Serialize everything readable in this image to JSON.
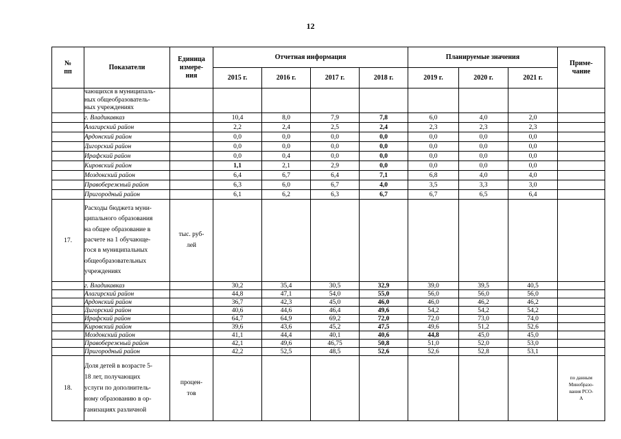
{
  "page_number": "12",
  "table": {
    "header": {
      "num": "№\nпп",
      "indicators": "Показатели",
      "unit": "Единица\nизмере-\nния",
      "report_group": "Отчетная информация",
      "plan_group": "Планируемые значения",
      "note": "Приме-\nчание",
      "years": [
        "2015 г.",
        "2016 г.",
        "2017 г.",
        "2018 г.",
        "2019 г.",
        "2020 г.",
        "2021 г."
      ]
    },
    "sections": [
      {
        "num": "",
        "title": "чающихся в муниципаль-\nных общеобразователь-\nных учреждениях",
        "unit": "",
        "note": "",
        "rows": [
          {
            "name": "г. Владикавказ",
            "values": [
              "10,4",
              "8,0",
              "7,9",
              "7,8",
              "6,0",
              "4,0",
              "2,0"
            ],
            "bold": [
              3
            ]
          },
          {
            "name": "Алагирский район",
            "values": [
              "2,2",
              "2,4",
              "2,5",
              "2,4",
              "2,3",
              "2,3",
              "2,3"
            ],
            "bold": [
              3
            ]
          },
          {
            "name": "Ардонский район",
            "values": [
              "0,0",
              "0,0",
              "0,0",
              "0,0",
              "0,0",
              "0,0",
              "0,0"
            ],
            "bold": [
              3
            ]
          },
          {
            "name": "Дигорский район",
            "values": [
              "0,0",
              "0,0",
              "0,0",
              "0,0",
              "0,0",
              "0,0",
              "0,0"
            ],
            "bold": [
              3
            ]
          },
          {
            "name": "Ирафский район",
            "values": [
              "0,0",
              "0,4",
              "0,0",
              "0,0",
              "0,0",
              "0,0",
              "0,0"
            ],
            "bold": [
              3
            ]
          },
          {
            "name": "Кировский район",
            "values": [
              "1,1",
              "2,1",
              "2,9",
              "0,0",
              "0,0",
              "0,0",
              "0,0"
            ],
            "bold": [
              0,
              3
            ]
          },
          {
            "name": "Моздокский район",
            "values": [
              "6,4",
              "6,7",
              "6,4",
              "7,1",
              "6,8",
              "4,0",
              "4,0"
            ],
            "bold": [
              3
            ]
          },
          {
            "name": "Правобережный район",
            "values": [
              "6,3",
              "6,0",
              "6,7",
              "4,0",
              "3,5",
              "3,3",
              "3,0"
            ],
            "bold": [
              3
            ]
          },
          {
            "name": "Пригородный район",
            "values": [
              "6,1",
              "6,2",
              "6,3",
              "6,7",
              "6,7",
              "6,5",
              "6,4"
            ],
            "bold": [
              3
            ]
          }
        ]
      },
      {
        "num": "17.",
        "title": "Расходы бюджета муни-\nципального образования\nна общее образование в\nрасчете на 1 обучающе-\nгося в муниципальных\nобщеобразовательных\nучреждениях",
        "unit": "тыс. руб-\nлей",
        "note": "",
        "rows": [
          {
            "name": "г. Владикавказ",
            "values": [
              "30,2",
              "35,4",
              "30,5",
              "32,9",
              "39,0",
              "39,5",
              "40,5"
            ],
            "bold": [
              3
            ]
          },
          {
            "name": "Алагирский район",
            "values": [
              "44,8",
              "47,1",
              "54,0",
              "55,0",
              "56,0",
              "56,0",
              "56,0"
            ],
            "bold": [
              3
            ]
          },
          {
            "name": "Ардонский район",
            "values": [
              "36,7",
              "42,3",
              "45,0",
              "46,0",
              "46,0",
              "46,2",
              "46,2"
            ],
            "bold": [
              3
            ]
          },
          {
            "name": "Дигорский район",
            "values": [
              "40,6",
              "44,6",
              "46,4",
              "49,6",
              "54,2",
              "54,2",
              "54,2"
            ],
            "bold": [
              3
            ]
          },
          {
            "name": "Ирафский район",
            "values": [
              "64,7",
              "64,9",
              "69,2",
              "72,0",
              "72,0",
              "73,0",
              "74,0"
            ],
            "bold": [
              3
            ]
          },
          {
            "name": "Кировский район",
            "values": [
              "39,6",
              "43,6",
              "45,2",
              "47,5",
              "49,6",
              "51,2",
              "52,6"
            ],
            "bold": [
              3
            ]
          },
          {
            "name": "Моздокский район",
            "values": [
              "41,1",
              "44,4",
              "40,1",
              "40,6",
              "44,8",
              "45,0",
              "45,0"
            ],
            "bold": [
              3,
              4
            ]
          },
          {
            "name": "Правобережный район",
            "values": [
              "42,1",
              "49,6",
              "46,75",
              "50,8",
              "51,0",
              "52,0",
              "53,0"
            ],
            "bold": [
              3
            ]
          },
          {
            "name": "Пригородный район",
            "values": [
              "42,2",
              "52,5",
              "48,5",
              "52,6",
              "52,6",
              "52,8",
              "53,1"
            ],
            "bold": [
              3
            ]
          }
        ]
      },
      {
        "num": "18.",
        "title": "Доля детей в возрасте 5-\n18 лет, получающих\nуслуги по дополнитель-\nному образованию в ор-\nганизациях различной",
        "unit": "процен-\nтов",
        "note": "по данным\nМинобразо-\nвания РСО-\nА",
        "rows": []
      }
    ]
  }
}
